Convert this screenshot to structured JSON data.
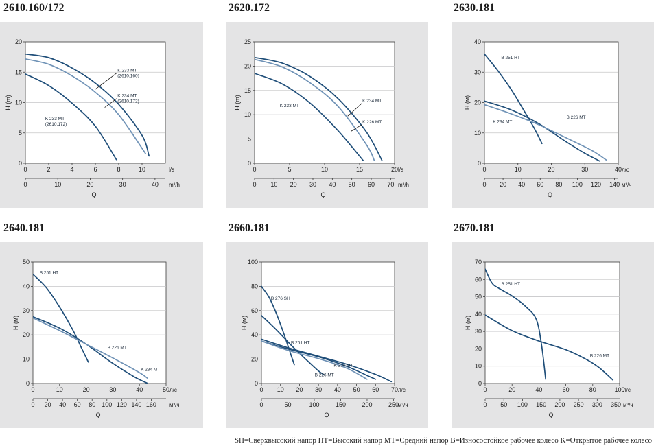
{
  "footer_legend": "SH=Сверхвысокий напор  HT=Высокий напор  MT=Средний напор  B=Износостойкое рабочее колесо  K=Открытое рабочее колесо",
  "colors": {
    "panel": "#e4e4e5",
    "dark_curve": "#1f4e79",
    "light_curve": "#6f92b6",
    "grid": "#c6c6c8"
  },
  "chart_data": [
    {
      "type": "line",
      "title": "2610.160/172",
      "ylabel": "H (m)",
      "xlabel": "Q",
      "x_unit": "l/s",
      "x2_unit": "m³/h",
      "ylim": [
        0,
        20
      ],
      "yticks": [
        0,
        5,
        10,
        15,
        20
      ],
      "xlim": [
        0,
        12
      ],
      "xticks": [
        0,
        2,
        4,
        6,
        8,
        10
      ],
      "x2ticks": [
        0,
        10,
        20,
        30,
        40
      ],
      "x2_factor": 3.6,
      "grid": "horizontal",
      "series": [
        {
          "name": "K 233 MT (2610.160)",
          "tone": "dark",
          "x": [
            0,
            2,
            4,
            6,
            8,
            10,
            10.6
          ],
          "y": [
            18,
            17.4,
            15.7,
            13.2,
            9.7,
            4.6,
            1.2
          ]
        },
        {
          "name": "K 234 MT (2610.172)",
          "tone": "light",
          "x": [
            0,
            2,
            4,
            6,
            8,
            10.3
          ],
          "y": [
            17.2,
            16.3,
            14.4,
            11.7,
            8,
            1.6
          ]
        },
        {
          "name": "K 233 MT (2610.172)",
          "tone": "dark",
          "x": [
            0,
            2,
            4,
            6,
            7.8
          ],
          "y": [
            14.7,
            12.8,
            9.9,
            6.1,
            0.6
          ]
        }
      ],
      "labels": [
        {
          "lines": [
            "K 233 MT",
            "(2610.160)"
          ],
          "x": 7.9,
          "y": 15.1,
          "lx": 6,
          "ly": 12.2
        },
        {
          "lines": [
            "K 234 MT",
            "(2610.172)"
          ],
          "x": 7.9,
          "y": 10.9,
          "lx": 6.8,
          "ly": 9.2
        },
        {
          "lines": [
            "K 233 MT",
            "(2610.172)"
          ],
          "x": 1.7,
          "y": 7.1
        }
      ]
    },
    {
      "type": "line",
      "title": "2620.172",
      "ylabel": "H (m)",
      "xlabel": "Q",
      "x_unit": "l/s",
      "x2_unit": "m³/h",
      "ylim": [
        0,
        25
      ],
      "yticks": [
        0,
        5,
        10,
        15,
        20,
        25
      ],
      "xlim": [
        0,
        20
      ],
      "xticks": [
        0,
        5,
        10,
        15,
        20
      ],
      "x2ticks": [
        0,
        10,
        20,
        30,
        40,
        50,
        60,
        70
      ],
      "x2_factor": 3.6,
      "grid": "horizontal",
      "series": [
        {
          "name": "K 234 MT",
          "tone": "dark",
          "x": [
            0,
            4,
            8,
            12,
            16,
            18.2
          ],
          "y": [
            21.8,
            20.6,
            17.8,
            13.2,
            6.4,
            0.6
          ]
        },
        {
          "name": "K 226 MT",
          "tone": "light",
          "x": [
            0,
            4,
            8,
            12,
            16,
            17.1
          ],
          "y": [
            21.4,
            19.8,
            16.5,
            11.6,
            3.8,
            0.6
          ]
        },
        {
          "name": "K 233 MT",
          "tone": "dark",
          "x": [
            0,
            4,
            8,
            12,
            15.5
          ],
          "y": [
            18.5,
            16.3,
            12.3,
            6.6,
            0.6
          ]
        }
      ],
      "labels": [
        {
          "lines": [
            "K 234 MT"
          ],
          "x": 15.4,
          "y": 12.6,
          "lx": 13.3,
          "ly": 9.7
        },
        {
          "lines": [
            "K 226 MT"
          ],
          "x": 15.4,
          "y": 8.2,
          "lx": 13.8,
          "ly": 6.6
        },
        {
          "lines": [
            "K 233 MT"
          ],
          "x": 3.6,
          "y": 11.6
        }
      ]
    },
    {
      "type": "line",
      "title": "2630.181",
      "ylabel": "H (м)",
      "xlabel": "Q",
      "x_unit": "л/с",
      "x2_unit": "м³/ч",
      "ylim": [
        0,
        40
      ],
      "yticks": [
        0,
        10,
        20,
        30,
        40
      ],
      "xlim": [
        0,
        40
      ],
      "xticks": [
        0,
        10,
        20,
        30,
        40
      ],
      "x2ticks": [
        0,
        20,
        40,
        60,
        80,
        100,
        120,
        140
      ],
      "x2_factor": 3.6,
      "grid": "horizontal",
      "series": [
        {
          "name": "B 251 HT",
          "tone": "dark",
          "x": [
            0,
            4,
            8,
            12,
            15,
            17.2
          ],
          "y": [
            36,
            30.5,
            24.3,
            17,
            11.3,
            6.5
          ]
        },
        {
          "name": "B 226 MT",
          "tone": "dark",
          "x": [
            0,
            8,
            16,
            24,
            30,
            34.5
          ],
          "y": [
            20.5,
            17.6,
            13.2,
            7.4,
            3.3,
            0.7
          ]
        },
        {
          "name": "K 234 MT",
          "tone": "light",
          "x": [
            0,
            8,
            16,
            24,
            32,
            36.4
          ],
          "y": [
            19.3,
            16.3,
            12.8,
            8.6,
            4.3,
            1.1
          ]
        }
      ],
      "labels": [
        {
          "lines": [
            "B 251 HT"
          ],
          "x": 5,
          "y": 34.3
        },
        {
          "lines": [
            "B 226 MT"
          ],
          "x": 24.5,
          "y": 14.7
        },
        {
          "lines": [
            "K 234 MT"
          ],
          "x": 2.5,
          "y": 13.2
        }
      ]
    },
    {
      "type": "line",
      "title": "2640.181",
      "ylabel": "H (м)",
      "xlabel": "Q",
      "x_unit": "л/с",
      "x2_unit": "м³/ч",
      "ylim": [
        0,
        50
      ],
      "yticks": [
        0,
        10,
        20,
        30,
        40,
        50
      ],
      "xlim": [
        0,
        50
      ],
      "xticks": [
        0,
        10,
        20,
        30,
        40,
        50
      ],
      "x2ticks": [
        0,
        20,
        40,
        60,
        80,
        100,
        120,
        140,
        160
      ],
      "x2_factor": 3.6,
      "grid": "horizontal",
      "series": [
        {
          "name": "B 251 HT",
          "tone": "dark",
          "x": [
            0,
            5,
            10,
            15,
            18,
            20.8
          ],
          "y": [
            45,
            39.5,
            31.5,
            22,
            15.2,
            8.8
          ]
        },
        {
          "name": "B 226 MT",
          "tone": "dark",
          "x": [
            0,
            10,
            20,
            30,
            38,
            42.8
          ],
          "y": [
            27.5,
            22.8,
            16.2,
            8.3,
            2.8,
            0.2
          ]
        },
        {
          "name": "K 234 MT",
          "tone": "light",
          "x": [
            0,
            10,
            20,
            30,
            40,
            43
          ],
          "y": [
            27,
            21.8,
            16.2,
            10.5,
            4.5,
            2.2
          ]
        }
      ],
      "labels": [
        {
          "lines": [
            "B 251 HT"
          ],
          "x": 2.5,
          "y": 45
        },
        {
          "lines": [
            "B 226 MT"
          ],
          "x": 28,
          "y": 14.2
        },
        {
          "lines": [
            "K 234 MT"
          ],
          "x": 40.5,
          "y": 5.2
        }
      ]
    },
    {
      "type": "line",
      "title": "2660.181",
      "ylabel": "H (м)",
      "xlabel": "Q",
      "x_unit": "л/с",
      "x2_unit": "м³/ч",
      "ylim": [
        0,
        100
      ],
      "yticks": [
        0,
        20,
        40,
        60,
        80,
        100
      ],
      "xlim": [
        0,
        70
      ],
      "xticks": [
        0,
        10,
        20,
        30,
        40,
        50,
        60,
        70
      ],
      "x2ticks": [
        0,
        50,
        100,
        150,
        200,
        250
      ],
      "x2_factor": 3.6,
      "grid": "horizontal",
      "series": [
        {
          "name": "B 276 SH",
          "tone": "dark",
          "x": [
            0,
            4,
            8,
            12,
            15,
            17.3
          ],
          "y": [
            80,
            71,
            57,
            40,
            26,
            15.5
          ]
        },
        {
          "name": "B 251 HT",
          "tone": "dark",
          "x": [
            0,
            8,
            16,
            24,
            29.5,
            32.8
          ],
          "y": [
            56,
            44,
            31,
            19,
            11,
            7.2
          ]
        },
        {
          "name": "B 226 MT",
          "tone": "dark",
          "x": [
            0,
            15,
            30,
            45,
            55,
            60
          ],
          "y": [
            35,
            28,
            22,
            14,
            7,
            3.5
          ]
        },
        {
          "name": "K 234 MT",
          "tone": "dark",
          "x": [
            0,
            15,
            30,
            45,
            60,
            68.3
          ],
          "y": [
            36.5,
            29,
            22.5,
            15.8,
            7.5,
            1.5
          ]
        },
        {
          "name": "",
          "tone": "light",
          "x": [
            0,
            15,
            30,
            45,
            55.5
          ],
          "y": [
            35,
            26.8,
            20.5,
            12.5,
            3.5
          ]
        }
      ],
      "labels": [
        {
          "lines": [
            "B 276 SH"
          ],
          "x": 5,
          "y": 69
        },
        {
          "lines": [
            "B 251 HT"
          ],
          "x": 15.5,
          "y": 32.5
        },
        {
          "lines": [
            "B 226 MT"
          ],
          "x": 28,
          "y": 5.8
        },
        {
          "lines": [
            "K 234 MT"
          ],
          "x": 38,
          "y": 13.8
        }
      ]
    },
    {
      "type": "line",
      "title": "2670.181",
      "ylabel": "H (м)",
      "xlabel": "Q",
      "x_unit": "л/с",
      "x2_unit": "м³/ч",
      "ylim": [
        0,
        70
      ],
      "yticks": [
        0,
        10,
        20,
        30,
        40,
        50,
        60,
        70
      ],
      "xlim": [
        0,
        100
      ],
      "xticks": [
        0,
        20,
        40,
        60,
        80,
        100
      ],
      "x2ticks": [
        0,
        50,
        100,
        150,
        200,
        250,
        300,
        350
      ],
      "x2_factor": 3.6,
      "grid": "horizontal",
      "series": [
        {
          "name": "B 251 HT",
          "tone": "dark",
          "x": [
            0,
            5,
            10,
            20,
            30,
            38,
            42,
            45
          ],
          "y": [
            66,
            58,
            55,
            50.5,
            44.5,
            37,
            22,
            2.5
          ]
        },
        {
          "name": "B 226 MT",
          "tone": "dark",
          "x": [
            0,
            20,
            40,
            60,
            75,
            85,
            95
          ],
          "y": [
            39.5,
            30.5,
            24.5,
            19.5,
            14,
            9,
            2
          ]
        }
      ],
      "labels": [
        {
          "lines": [
            "B 251 HT"
          ],
          "x": 12,
          "y": 56.5
        },
        {
          "lines": [
            "B 226 MT"
          ],
          "x": 78,
          "y": 15.2
        }
      ]
    }
  ]
}
